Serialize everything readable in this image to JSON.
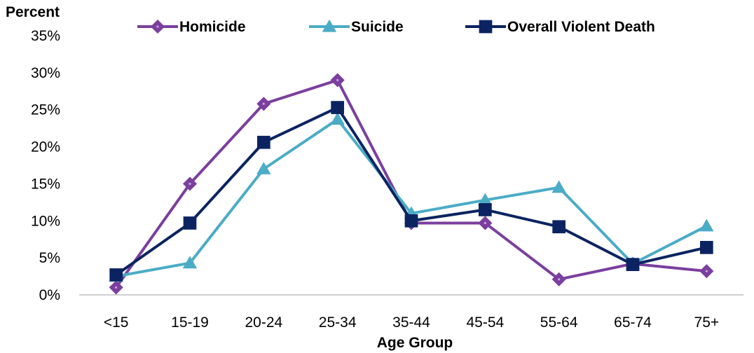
{
  "chart_data": {
    "type": "line",
    "ylabel": "Percent",
    "xlabel": "Age Group",
    "ylim": [
      0,
      35
    ],
    "ytick_values": [
      0,
      5,
      10,
      15,
      20,
      25,
      30,
      35
    ],
    "ytick_labels": [
      "0%",
      "5%",
      "10%",
      "15%",
      "20%",
      "25%",
      "30%",
      "35%"
    ],
    "categories": [
      "<15",
      "15-19",
      "20-24",
      "25-34",
      "35-44",
      "45-54",
      "55-64",
      "65-74",
      "75+"
    ],
    "grid": false,
    "legend_position": "top",
    "series": [
      {
        "name": "Homicide",
        "marker": "diamond",
        "color": "#7B3F9E",
        "values": [
          1.0,
          15.0,
          25.8,
          29.0,
          9.7,
          9.7,
          2.1,
          4.2,
          3.2
        ]
      },
      {
        "name": "Suicide",
        "marker": "triangle",
        "color": "#4BACC6",
        "values": [
          2.5,
          4.3,
          17.0,
          23.7,
          11.0,
          12.8,
          14.5,
          4.2,
          9.3
        ]
      },
      {
        "name": "Overall Violent Death",
        "marker": "square",
        "color": "#0B2461",
        "values": [
          2.7,
          9.7,
          20.6,
          25.3,
          10.0,
          11.5,
          9.2,
          4.1,
          6.4
        ]
      }
    ]
  }
}
